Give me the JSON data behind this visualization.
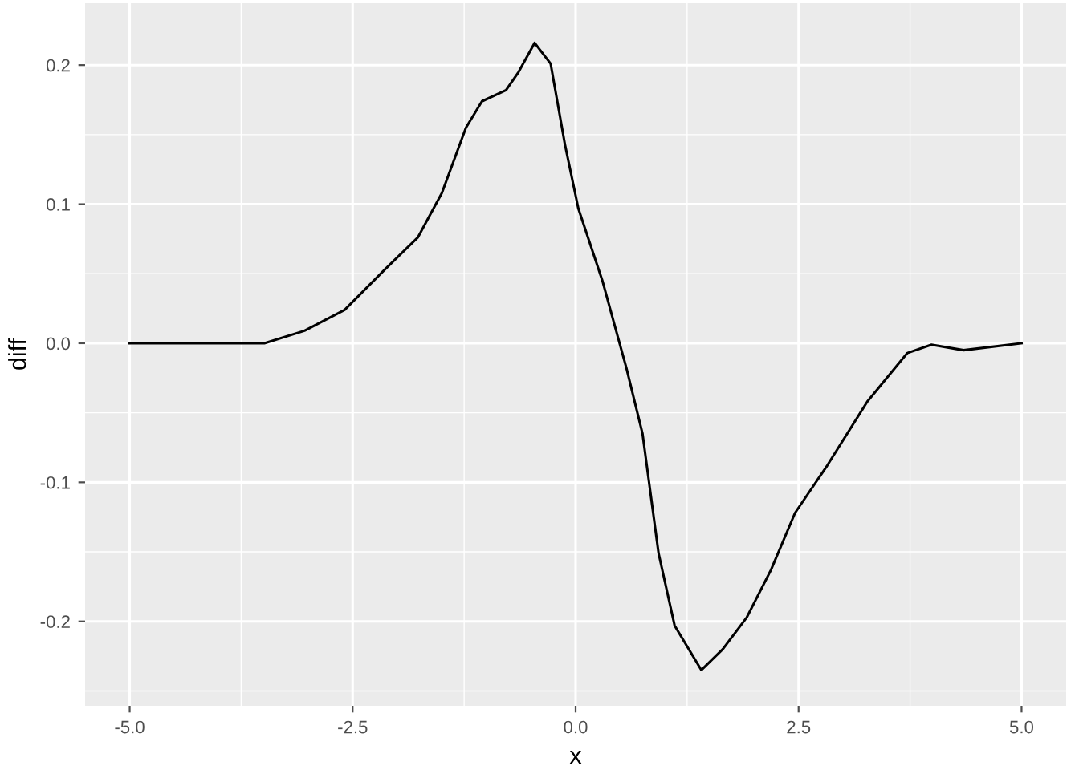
{
  "chart_data": {
    "type": "line",
    "xlabel": "x",
    "ylabel": "diff",
    "x": [
      -5,
      -3.49,
      -3.04,
      -2.59,
      -2.14,
      -1.77,
      -1.5,
      -1.23,
      -1.05,
      -0.78,
      -0.64,
      -0.46,
      -0.28,
      -0.12,
      0.03,
      0.3,
      0.57,
      0.75,
      0.93,
      1.11,
      1.41,
      1.65,
      1.92,
      2.19,
      2.46,
      2.82,
      3.27,
      3.72,
      3.99,
      4.35,
      5
    ],
    "series": [
      {
        "color": "#000000",
        "values": [
          0,
          0,
          0.009,
          0.024,
          0.053,
          0.076,
          0.108,
          0.155,
          0.174,
          0.182,
          0.195,
          0.216,
          0.201,
          0.143,
          0.097,
          0.045,
          -0.018,
          -0.065,
          -0.151,
          -0.203,
          -0.235,
          -0.22,
          -0.197,
          -0.163,
          -0.122,
          -0.088,
          -0.042,
          -0.007,
          -0.001,
          -0.005,
          0
        ]
      }
    ],
    "xlim": [
      -5.5,
      5.5
    ],
    "ylim": [
      -0.2607,
      0.2445
    ],
    "xticks": [
      {
        "value": -5,
        "label": "-5.0"
      },
      {
        "value": -2.5,
        "label": "-2.5"
      },
      {
        "value": 0,
        "label": "0.0"
      },
      {
        "value": 2.5,
        "label": "2.5"
      },
      {
        "value": 5,
        "label": "5.0"
      }
    ],
    "yticks": [
      {
        "value": -0.2,
        "label": "-0.2"
      },
      {
        "value": -0.1,
        "label": "-0.1"
      },
      {
        "value": 0,
        "label": "0.0"
      },
      {
        "value": 0.1,
        "label": "0.1"
      },
      {
        "value": 0.2,
        "label": "0.2"
      }
    ],
    "grid": true,
    "legend": false,
    "marker": "none",
    "line_style": "solid"
  }
}
